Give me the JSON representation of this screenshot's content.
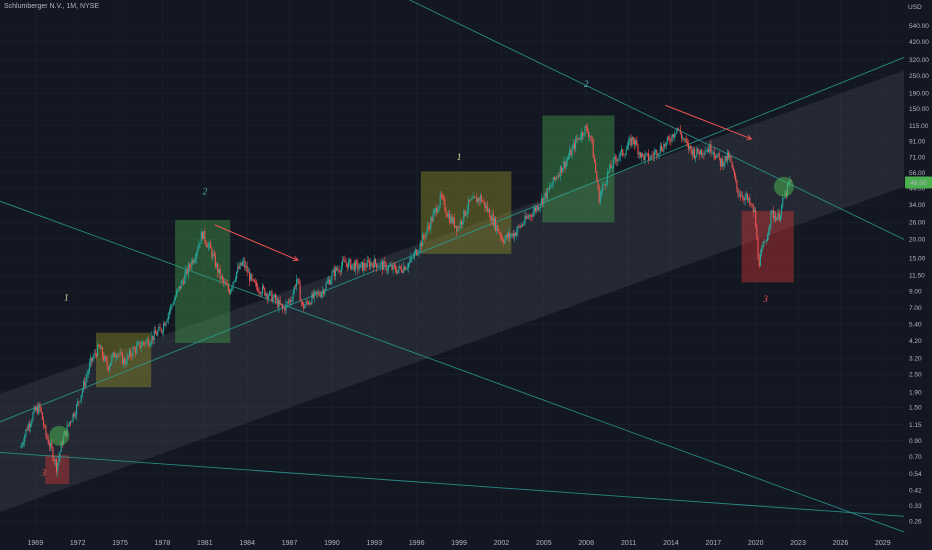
{
  "header": {
    "symbol_line": "Schlumberger N.V., 1M, NYSE"
  },
  "colors": {
    "background": "#131722",
    "up": "#26a69a",
    "down": "#ef5350",
    "trendline": "#2a9d94",
    "channel_fill": "#9598a1",
    "green_box": "#4caf50",
    "yellow_box": "#9e9d24",
    "red_box": "#e53935",
    "price_badge": "#4caf50",
    "arrow": "#ef5350",
    "wave_yellow": "#e8e4a0",
    "wave_teal": "#4db6ac",
    "wave_red": "#ef5350"
  },
  "chart_data": {
    "type": "candlestick",
    "title": "Schlumberger N.V., 1M, NYSE",
    "yscale": "log",
    "yunit": "USD",
    "ylim": [
      0.22,
      800
    ],
    "xlim": [
      1966.5,
      2030.5
    ],
    "x_ticks": [
      "1969",
      "1972",
      "1975",
      "1978",
      "1981",
      "1984",
      "1987",
      "1990",
      "1993",
      "1996",
      "1999",
      "2002",
      "2005",
      "2008",
      "2011",
      "2014",
      "2017",
      "2020",
      "2023",
      "2026",
      "2029"
    ],
    "y_ticks": [
      "540.00",
      "420.00",
      "320.00",
      "250.00",
      "190.00",
      "150.00",
      "115.00",
      "91.00",
      "71.00",
      "56.00",
      "44.00",
      "34.00",
      "26.00",
      "20.00",
      "15.00",
      "11.50",
      "9.00",
      "7.00",
      "5.40",
      "4.20",
      "3.20",
      "2.50",
      "1.90",
      "1.50",
      "1.15",
      "0.90",
      "0.70",
      "0.54",
      "0.42",
      "0.33",
      "0.26"
    ],
    "last_price": "48.00",
    "price_path": [
      [
        1968.0,
        0.8
      ],
      [
        1968.5,
        1.1
      ],
      [
        1969.0,
        1.4
      ],
      [
        1969.4,
        1.5
      ],
      [
        1969.8,
        1.0
      ],
      [
        1970.2,
        0.8
      ],
      [
        1970.6,
        0.6
      ],
      [
        1971.0,
        0.9
      ],
      [
        1971.5,
        1.2
      ],
      [
        1972.0,
        1.5
      ],
      [
        1972.5,
        2.1
      ],
      [
        1973.0,
        3.0
      ],
      [
        1973.6,
        3.8
      ],
      [
        1974.2,
        2.8
      ],
      [
        1974.8,
        3.6
      ],
      [
        1975.4,
        3.0
      ],
      [
        1976.0,
        3.6
      ],
      [
        1976.6,
        4.0
      ],
      [
        1977.2,
        4.3
      ],
      [
        1978.0,
        5.0
      ],
      [
        1978.8,
        7.5
      ],
      [
        1979.6,
        11.0
      ],
      [
        1980.4,
        16.0
      ],
      [
        1980.9,
        22.0
      ],
      [
        1981.5,
        17.0
      ],
      [
        1982.2,
        11.0
      ],
      [
        1982.8,
        9.0
      ],
      [
        1983.3,
        12.0
      ],
      [
        1983.8,
        14.0
      ],
      [
        1984.5,
        10.0
      ],
      [
        1985.3,
        9.0
      ],
      [
        1986.0,
        8.0
      ],
      [
        1986.6,
        6.8
      ],
      [
        1987.2,
        8.0
      ],
      [
        1987.6,
        11.0
      ],
      [
        1988.0,
        7.0
      ],
      [
        1988.6,
        8.0
      ],
      [
        1989.4,
        9.0
      ],
      [
        1990.2,
        12.0
      ],
      [
        1991.0,
        14.0
      ],
      [
        1992.0,
        13.0
      ],
      [
        1993.0,
        14.0
      ],
      [
        1994.0,
        13.0
      ],
      [
        1994.8,
        12.5
      ],
      [
        1995.6,
        14.0
      ],
      [
        1996.4,
        19.0
      ],
      [
        1997.2,
        28.0
      ],
      [
        1997.8,
        38.0
      ],
      [
        1998.4,
        28.0
      ],
      [
        1999.0,
        24.0
      ],
      [
        1999.8,
        35.0
      ],
      [
        2000.6,
        38.0
      ],
      [
        2001.4,
        28.0
      ],
      [
        2002.2,
        20.0
      ],
      [
        2003.0,
        22.0
      ],
      [
        2003.8,
        27.0
      ],
      [
        2004.6,
        33.0
      ],
      [
        2005.4,
        42.0
      ],
      [
        2006.2,
        58.0
      ],
      [
        2006.8,
        70.0
      ],
      [
        2007.4,
        92.0
      ],
      [
        2008.0,
        110.0
      ],
      [
        2008.4,
        100.0
      ],
      [
        2009.0,
        38.0
      ],
      [
        2009.6,
        55.0
      ],
      [
        2010.2,
        70.0
      ],
      [
        2010.8,
        78.0
      ],
      [
        2011.4,
        95.0
      ],
      [
        2012.0,
        72.0
      ],
      [
        2012.6,
        70.0
      ],
      [
        2013.2,
        80.0
      ],
      [
        2013.8,
        88.0
      ],
      [
        2014.5,
        112.0
      ],
      [
        2015.2,
        85.0
      ],
      [
        2015.8,
        75.0
      ],
      [
        2016.4,
        80.0
      ],
      [
        2017.0,
        82.0
      ],
      [
        2017.6,
        65.0
      ],
      [
        2018.2,
        72.0
      ],
      [
        2018.8,
        42.0
      ],
      [
        2019.4,
        38.0
      ],
      [
        2020.0,
        30.0
      ],
      [
        2020.3,
        14.0
      ],
      [
        2020.8,
        20.0
      ],
      [
        2021.2,
        30.0
      ],
      [
        2021.7,
        28.0
      ],
      [
        2022.1,
        38.0
      ],
      [
        2022.5,
        48.0
      ]
    ],
    "channel": {
      "upper_band": [
        [
          1966.5,
          1.85
        ],
        [
          2030.5,
          270
        ]
      ],
      "lower_band": [
        [
          1966.5,
          0.3
        ],
        [
          2030.5,
          45
        ]
      ]
    },
    "trendlines": [
      {
        "from": [
          1966.5,
          36
        ],
        "to": [
          2030.5,
          0.22
        ]
      },
      {
        "from": [
          1995.5,
          800
        ],
        "to": [
          2030.5,
          20
        ]
      },
      {
        "from": [
          1966.5,
          1.2
        ],
        "to": [
          2030.5,
          330
        ]
      },
      {
        "from": [
          1966.5,
          0.75
        ],
        "to": [
          2030.5,
          0.28
        ]
      }
    ],
    "boxes": [
      {
        "kind": "red_box",
        "x": [
          1969.7,
          1971.4
        ],
        "y": [
          0.46,
          0.72
        ]
      },
      {
        "kind": "yellow_box",
        "x": [
          1973.3,
          1977.2
        ],
        "y": [
          2.05,
          4.75
        ]
      },
      {
        "kind": "green_box",
        "x": [
          1978.9,
          1982.8
        ],
        "y": [
          4.05,
          27
        ]
      },
      {
        "kind": "yellow_box",
        "x": [
          1996.3,
          2002.7
        ],
        "y": [
          16,
          57
        ]
      },
      {
        "kind": "green_box",
        "x": [
          2004.9,
          2010.0
        ],
        "y": [
          26,
          135
        ]
      },
      {
        "kind": "red_box",
        "x": [
          2019.0,
          2022.7
        ],
        "y": [
          10.3,
          31
        ]
      }
    ],
    "circles": [
      {
        "x": 1970.7,
        "y": 0.97
      },
      {
        "x": 2022.0,
        "y": 45
      }
    ],
    "arrows": [
      {
        "from": [
          1981.7,
          25
        ],
        "to": [
          1987.6,
          14.5
        ]
      },
      {
        "from": [
          2013.6,
          158
        ],
        "to": [
          2019.7,
          94
        ]
      }
    ],
    "wave_labels": [
      {
        "text": "3",
        "x": 1969.6,
        "y": 0.52,
        "kind": "wave_red"
      },
      {
        "text": "1",
        "x": 1971.2,
        "y": 7.8,
        "kind": "wave_yellow"
      },
      {
        "text": "2",
        "x": 1981.0,
        "y": 40,
        "kind": "wave_teal"
      },
      {
        "text": "1",
        "x": 1999.0,
        "y": 68,
        "kind": "wave_yellow"
      },
      {
        "text": "2",
        "x": 2008.0,
        "y": 210,
        "kind": "wave_teal"
      },
      {
        "text": "3",
        "x": 2020.7,
        "y": 7.6,
        "kind": "wave_red"
      }
    ]
  }
}
